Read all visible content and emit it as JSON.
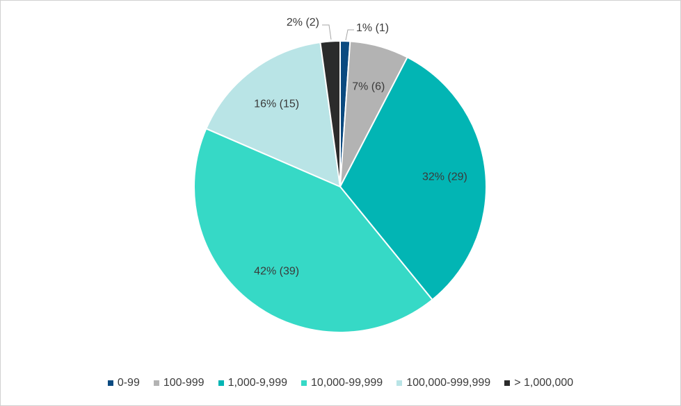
{
  "chart_data": {
    "type": "pie",
    "title": "",
    "legend_position": "bottom",
    "slices": [
      {
        "name": "0-99",
        "value": 1,
        "percent": 1,
        "label": "1% (1)",
        "color": "#0b4a80"
      },
      {
        "name": "100-999",
        "value": 6,
        "percent": 7,
        "label": "7% (6)",
        "color": "#b3b3b3"
      },
      {
        "name": "1,000-9,999",
        "value": 29,
        "percent": 32,
        "label": "32% (29)",
        "color": "#02b5b4"
      },
      {
        "name": "10,000-99,999",
        "value": 39,
        "percent": 42,
        "label": "42% (39)",
        "color": "#36d9c6"
      },
      {
        "name": "100,000-999,999",
        "value": 15,
        "percent": 16,
        "label": "16% (15)",
        "color": "#b9e4e6"
      },
      {
        "name": "> 1,000,000",
        "value": 2,
        "percent": 2,
        "label": "2% (2)",
        "color": "#2b2b2b"
      }
    ]
  }
}
